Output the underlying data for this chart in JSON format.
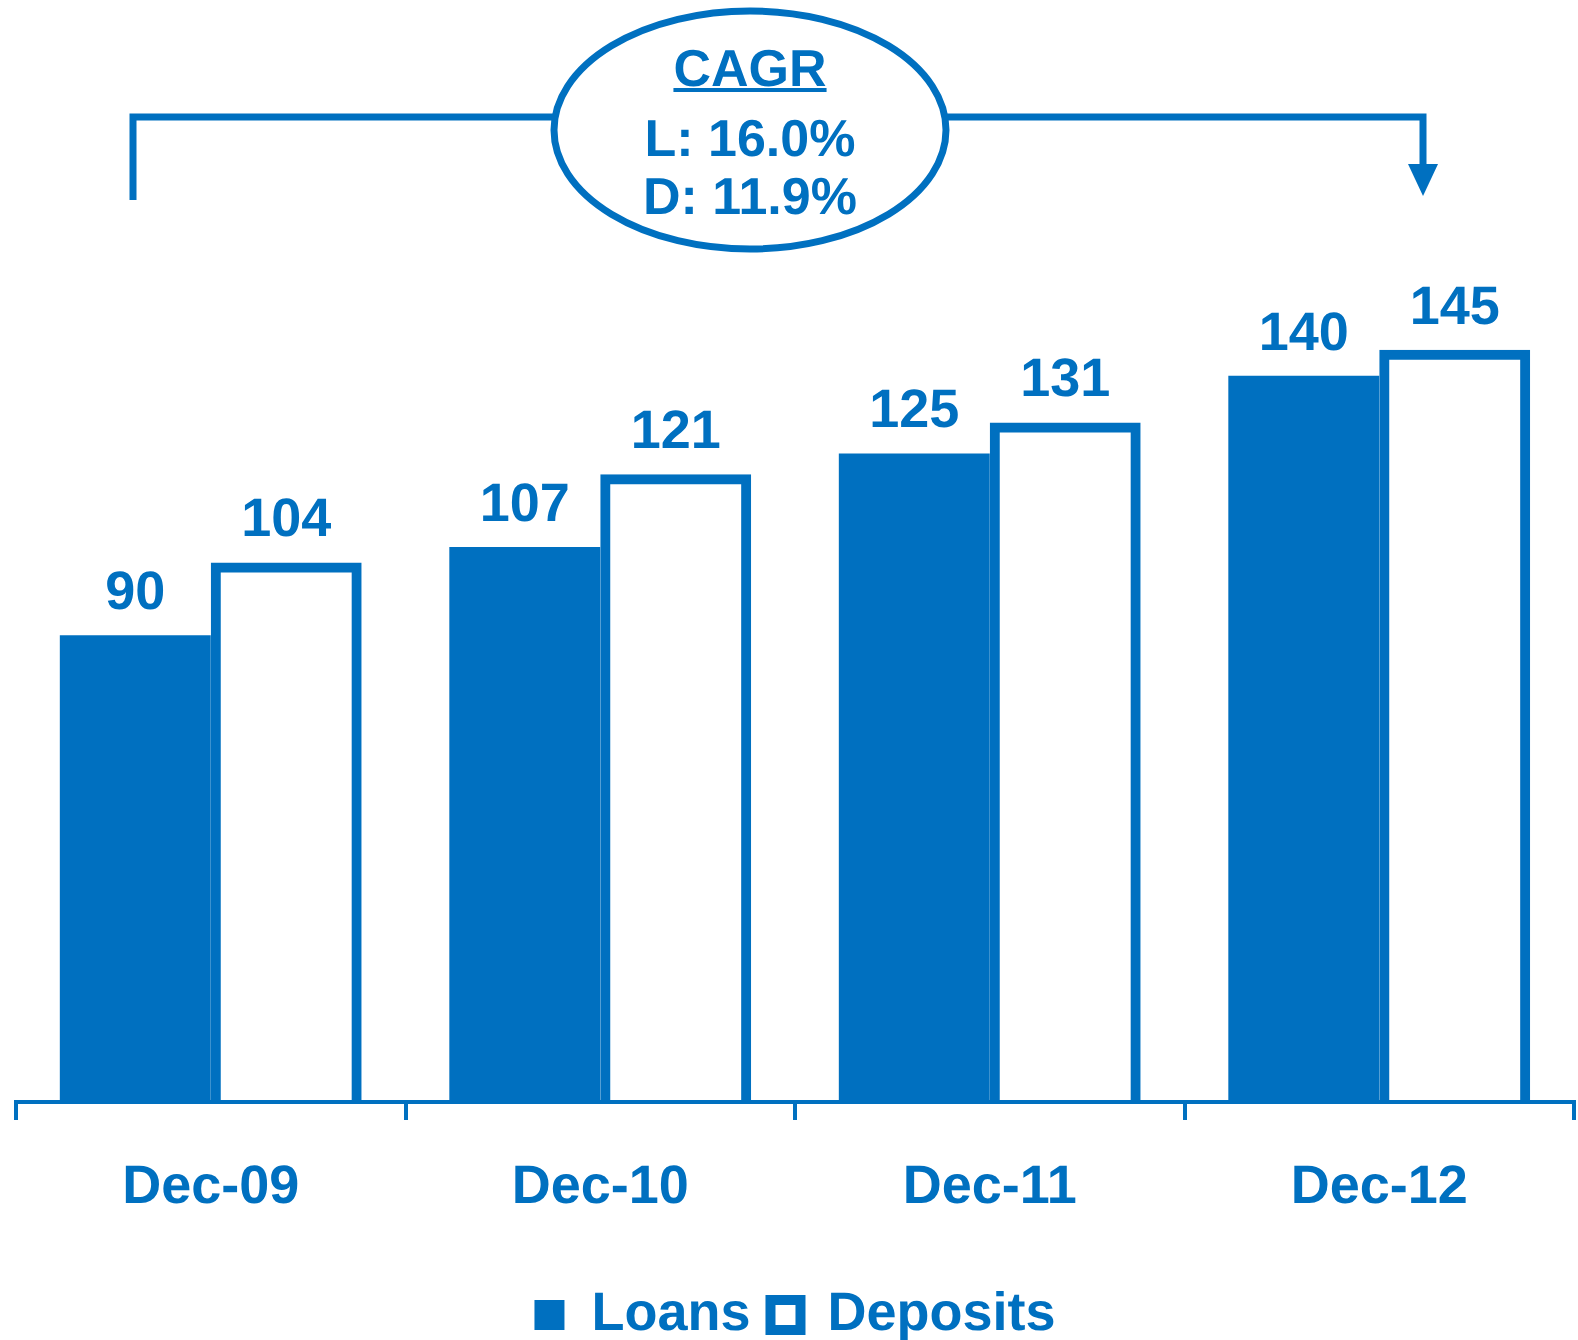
{
  "chart_data": {
    "type": "bar",
    "categories": [
      "Dec-09",
      "Dec-10",
      "Dec-11",
      "Dec-12"
    ],
    "series": [
      {
        "name": "Loans",
        "color": "#0070c0",
        "values": [
          90,
          107,
          125,
          140
        ]
      },
      {
        "name": "Deposits",
        "color": "#0070c0",
        "values": [
          104,
          121,
          131,
          145
        ]
      }
    ],
    "data_labels": true,
    "annotations": [
      "CAGR",
      "L: 16.0%",
      "D: 11.9%"
    ],
    "legend": "bottom",
    "tick_labels": "x"
  }
}
